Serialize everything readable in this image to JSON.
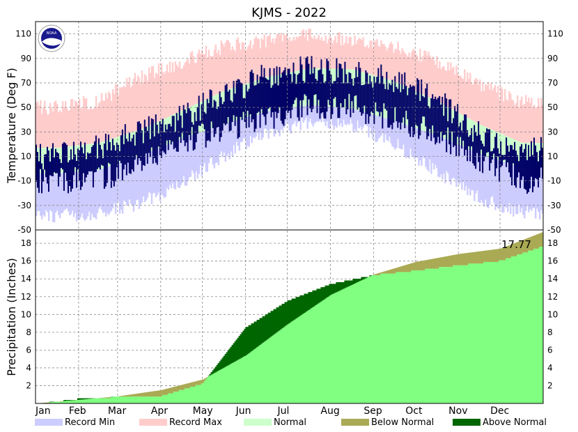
{
  "chart_data": [
    {
      "type": "line",
      "panel": "temperature",
      "title": "KJMS - 2022",
      "ylabel": "Temperature (Deg F)",
      "ylim": [
        -50,
        120
      ],
      "yticks": [
        -50,
        -30,
        -10,
        10,
        30,
        50,
        70,
        90,
        110
      ],
      "ytick_labels": [
        "-50",
        "-30",
        "-10",
        "10",
        "30",
        "50",
        "70",
        "90",
        "110"
      ],
      "months": [
        "Jan",
        "Feb",
        "Mar",
        "Apr",
        "May",
        "Jun",
        "Jul",
        "Aug",
        "Sep",
        "Oct",
        "Nov",
        "Dec"
      ],
      "grid": true,
      "series": [
        {
          "name": "Record Min",
          "color": "#ccccff",
          "monthly_values": [
            -38,
            -36,
            -28,
            -12,
            12,
            30,
            38,
            36,
            20,
            -2,
            -24,
            -36
          ]
        },
        {
          "name": "Record Max",
          "color": "#ffcccc",
          "monthly_values": [
            50,
            55,
            75,
            88,
            100,
            105,
            110,
            105,
            100,
            88,
            68,
            55
          ]
        },
        {
          "name": "Normal",
          "color": "#ccffcc",
          "monthly_low": [
            -4,
            -1,
            11,
            25,
            37,
            47,
            52,
            49,
            39,
            27,
            12,
            1
          ],
          "monthly_high": [
            17,
            21,
            32,
            48,
            64,
            75,
            82,
            81,
            71,
            55,
            36,
            21
          ]
        },
        {
          "name": "Observed",
          "color": "#000066",
          "monthly_low": [
            -10,
            -8,
            2,
            22,
            32,
            42,
            52,
            50,
            40,
            28,
            8,
            -10
          ],
          "monthly_high": [
            10,
            18,
            30,
            42,
            62,
            76,
            82,
            78,
            72,
            56,
            28,
            16
          ]
        }
      ]
    },
    {
      "type": "area",
      "panel": "precipitation",
      "ylabel": "Precipitation (Inches)",
      "ylim": [
        0,
        19.5
      ],
      "yticks": [
        2,
        4,
        6,
        8,
        10,
        12,
        14,
        16,
        18
      ],
      "ytick_labels": [
        "2",
        "4",
        "6",
        "8",
        "10",
        "12",
        "14",
        "16",
        "18"
      ],
      "months": [
        "Jan",
        "Feb",
        "Mar",
        "Apr",
        "May",
        "Jun",
        "Jul",
        "Aug",
        "Sep",
        "Oct",
        "Nov",
        "Dec"
      ],
      "grid": true,
      "annotation": "17.77",
      "series": [
        {
          "name": "Normal",
          "color": "#80ff80",
          "monthly_values": [
            0,
            0.4,
            0.8,
            1.5,
            2.7,
            5.4,
            8.9,
            12.2,
            14.5,
            15.9,
            16.8,
            17.4,
            19.3
          ]
        },
        {
          "name": "Observed",
          "color": "#006600",
          "monthly_values": [
            0,
            0.6,
            0.8,
            0.9,
            2.3,
            8.6,
            11.6,
            13.5,
            14.5,
            15.0,
            15.6,
            16.1,
            17.77
          ]
        }
      ]
    }
  ],
  "legend": [
    {
      "label": "Record Min",
      "color": "#ccccff"
    },
    {
      "label": "Record Max",
      "color": "#ffcccc"
    },
    {
      "label": "Normal",
      "color": "#ccffcc"
    },
    {
      "label": "Below Normal",
      "color": "#aaaa55"
    },
    {
      "label": "Above Normal",
      "color": "#006600"
    }
  ],
  "logo": {
    "text": "NOAA",
    "icon": "noaa-logo-icon"
  }
}
